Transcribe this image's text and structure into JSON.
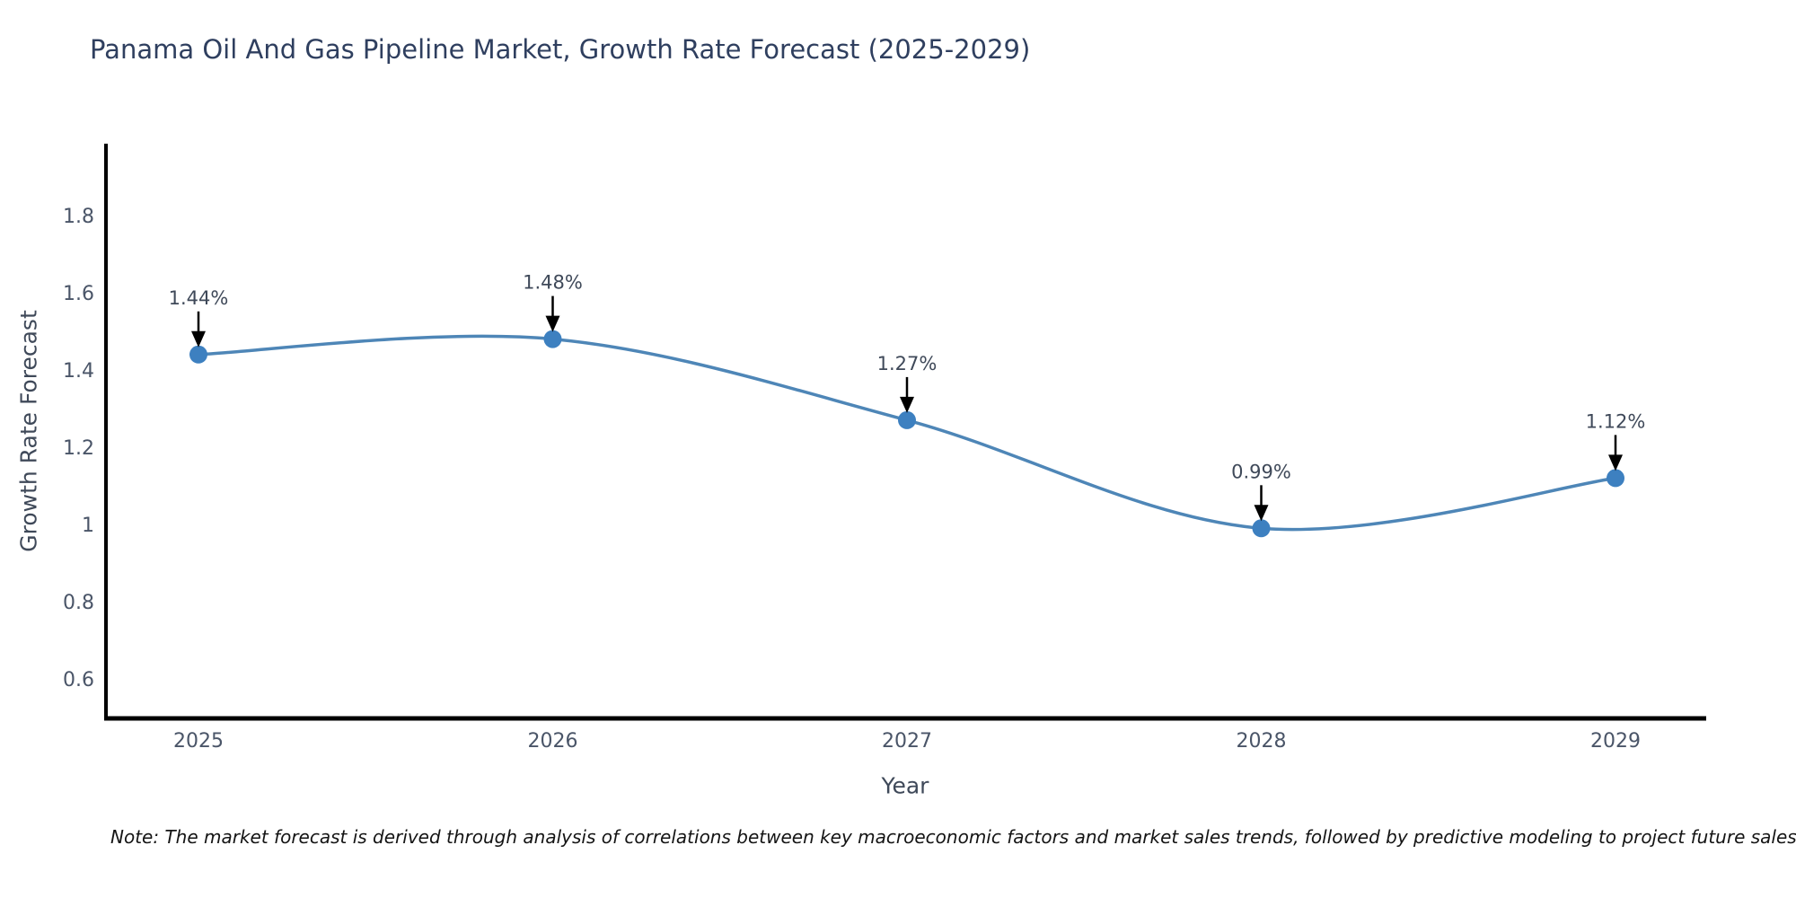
{
  "title": "Panama Oil And Gas Pipeline Market, Growth Rate Forecast (2025-2029)",
  "note": "Note: The market forecast is derived through analysis of correlations between key macroeconomic factors and market sales trends, followed by predictive modeling to project future sales",
  "chart_data": {
    "type": "line",
    "title": "Panama Oil And Gas Pipeline Market, Growth Rate Forecast (2025-2029)",
    "x": [
      "2025",
      "2026",
      "2027",
      "2028",
      "2029"
    ],
    "values": [
      1.44,
      1.48,
      1.27,
      0.99,
      1.12
    ],
    "point_labels": [
      "1.44%",
      "1.48%",
      "1.27%",
      "0.99%",
      "1.12%"
    ],
    "xlabel": "Year",
    "ylabel": "Growth Rate Forecast",
    "yticks": [
      "1.8",
      "1.6",
      "1.4",
      "1.2",
      "1",
      "0.8",
      "0.6"
    ],
    "ytick_values": [
      1.8,
      1.6,
      1.4,
      1.2,
      1.0,
      0.8,
      0.6
    ],
    "ylim": [
      0.5,
      1.99
    ],
    "grid": false,
    "line_shape": "spline",
    "legend": "none",
    "colors": {
      "line": "#4e86b7",
      "marker": "#3d80c0",
      "axis": "#000000",
      "annotation_arrow": "#000000",
      "tick_text": "#4a5568",
      "title_text": "#2f3f5f"
    }
  }
}
